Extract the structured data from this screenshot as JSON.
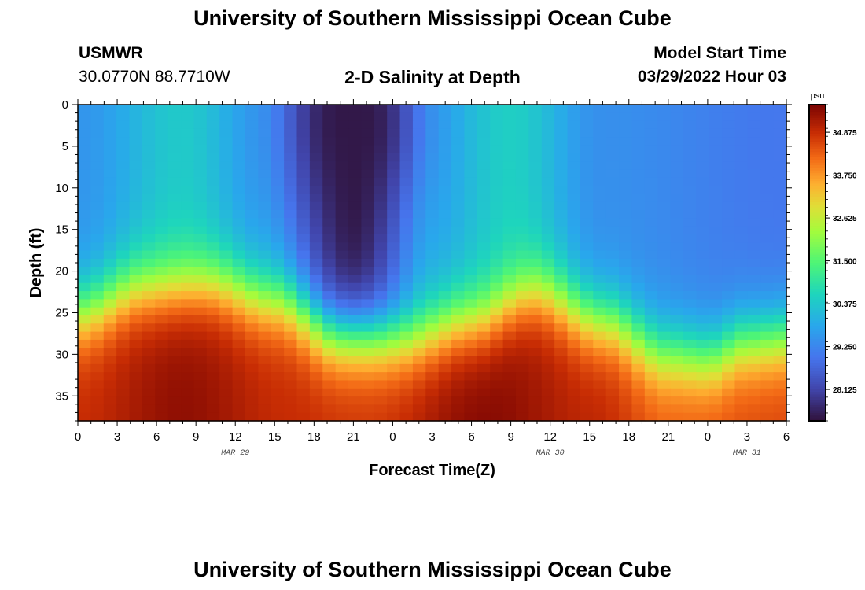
{
  "header": {
    "title": "University of Southern Mississippi Ocean Cube",
    "station": "USMWR",
    "coords": "30.0770N  88.7710W",
    "subtitle": "2-D Salinity at Depth",
    "model_start_label": "Model Start Time",
    "model_start_value": "03/29/2022 Hour 03"
  },
  "footer": {
    "title": "University of Southern Mississippi Ocean Cube"
  },
  "chart_data": {
    "type": "heatmap",
    "title": "2-D Salinity at Depth",
    "xlabel": "Forecast Time(Z)",
    "ylabel": "Depth (ft)",
    "x_hours": [
      0,
      54
    ],
    "ylim": [
      0,
      38
    ],
    "y_ticks": [
      0,
      5,
      10,
      15,
      20,
      25,
      30,
      35
    ],
    "x_tick_labels": [
      "0",
      "3",
      "6",
      "9",
      "12",
      "15",
      "18",
      "21",
      "0",
      "3",
      "6",
      "9",
      "12",
      "15",
      "18",
      "21",
      "0",
      "3",
      "6"
    ],
    "date_labels": [
      {
        "text": "MAR 29",
        "hour": 12
      },
      {
        "text": "MAR 30",
        "hour": 36
      },
      {
        "text": "MAR 31",
        "hour": 51
      }
    ],
    "colorbar": {
      "unit": "psu",
      "range": [
        27.3,
        35.6
      ],
      "ticks": [
        "34.875",
        "33.750",
        "32.625",
        "31.500",
        "30.375",
        "29.250",
        "28.125"
      ]
    },
    "grid": {
      "cols": 55,
      "rows": 39
    },
    "halocline_depth_ft": [
      {
        "hour": 0,
        "depth": 25.0
      },
      {
        "hour": 5,
        "depth": 22.0
      },
      {
        "hour": 10,
        "depth": 21.5
      },
      {
        "hour": 15,
        "depth": 23.5
      },
      {
        "hour": 20,
        "depth": 27.5
      },
      {
        "hour": 25,
        "depth": 28.0
      },
      {
        "hour": 30,
        "depth": 26.0
      },
      {
        "hour": 35,
        "depth": 22.5
      },
      {
        "hour": 40,
        "depth": 26.0
      },
      {
        "hour": 45,
        "depth": 30.0
      },
      {
        "hour": 48,
        "depth": 30.5
      },
      {
        "hour": 51,
        "depth": 28.5
      },
      {
        "hour": 54,
        "depth": 28.0
      }
    ],
    "fresh_core": {
      "hour": 21,
      "depth_ft": 2,
      "salinity_psu": 27.4
    },
    "surface_salinity_psu": [
      {
        "hour": 0,
        "value": 29.5
      },
      {
        "hour": 8,
        "value": 30.4
      },
      {
        "hour": 14,
        "value": 29.6
      },
      {
        "hour": 21,
        "value": 27.4
      },
      {
        "hour": 27,
        "value": 29.8
      },
      {
        "hour": 33,
        "value": 30.5
      },
      {
        "hour": 40,
        "value": 29.4
      },
      {
        "hour": 54,
        "value": 29.0
      }
    ],
    "bottom_salinity_psu": [
      {
        "hour": 0,
        "value": 34.9
      },
      {
        "hour": 8,
        "value": 35.4
      },
      {
        "hour": 16,
        "value": 34.9
      },
      {
        "hour": 22,
        "value": 34.8
      },
      {
        "hour": 31,
        "value": 35.5
      },
      {
        "hour": 39,
        "value": 35.0
      },
      {
        "hour": 45,
        "value": 34.4
      },
      {
        "hour": 54,
        "value": 34.6
      }
    ]
  }
}
